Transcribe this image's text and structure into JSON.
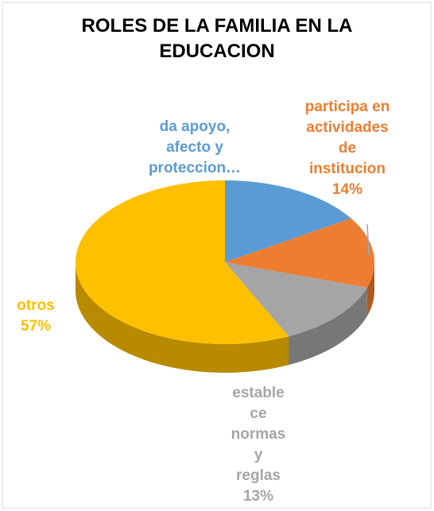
{
  "chart_data": {
    "type": "pie3d",
    "title": "ROLES DE LA FAMILIA EN LA EDUCACION",
    "categories": [
      "da apoyo, afecto y proteccion…",
      "participa en actividades de institucion",
      "establece normas y reglas",
      "otros"
    ],
    "values": [
      16,
      14,
      13,
      57
    ],
    "value_labels": [
      null,
      "14%",
      "13%",
      "57%"
    ],
    "colors": [
      "#5b9bd5",
      "#ed7d31",
      "#a5a5a5",
      "#ffc000"
    ]
  }
}
